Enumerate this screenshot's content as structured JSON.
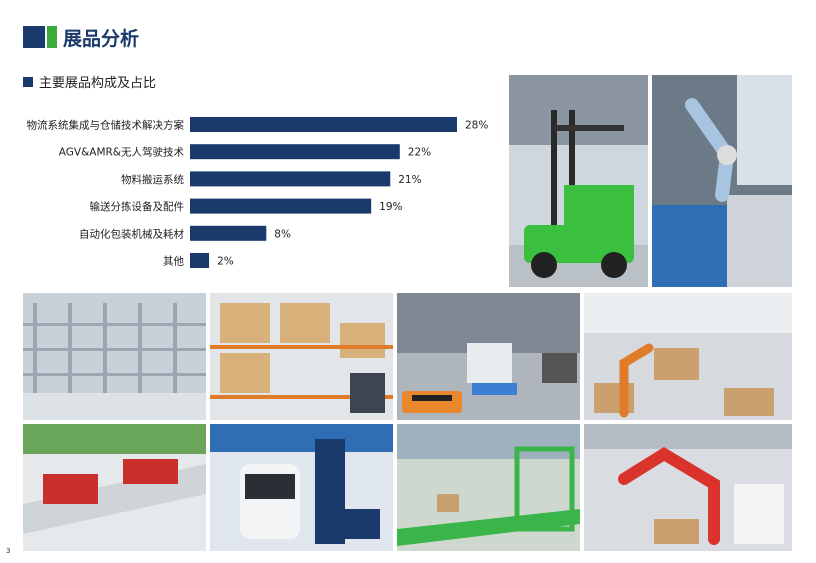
{
  "header": {
    "title": "展品分析"
  },
  "section": {
    "subtitle": "主要展品构成及占比"
  },
  "chart_data": {
    "type": "bar",
    "orientation": "horizontal",
    "categories": [
      "物流系统集成与仓储技术解决方案",
      "AGV&AMR&无人驾驶技术",
      "物料搬运系统",
      "输送分拣设备及配件",
      "自动化包装机械及耗材",
      "其他"
    ],
    "values": [
      28,
      22,
      21,
      19,
      8,
      2
    ],
    "value_labels": [
      "28%",
      "22%",
      "21%",
      "19%",
      "8%",
      "2%"
    ],
    "unit": "%",
    "bar_color": "#1a3a6b",
    "xlim": [
      0,
      28
    ],
    "grid": false
  },
  "page": {
    "number": "3"
  }
}
